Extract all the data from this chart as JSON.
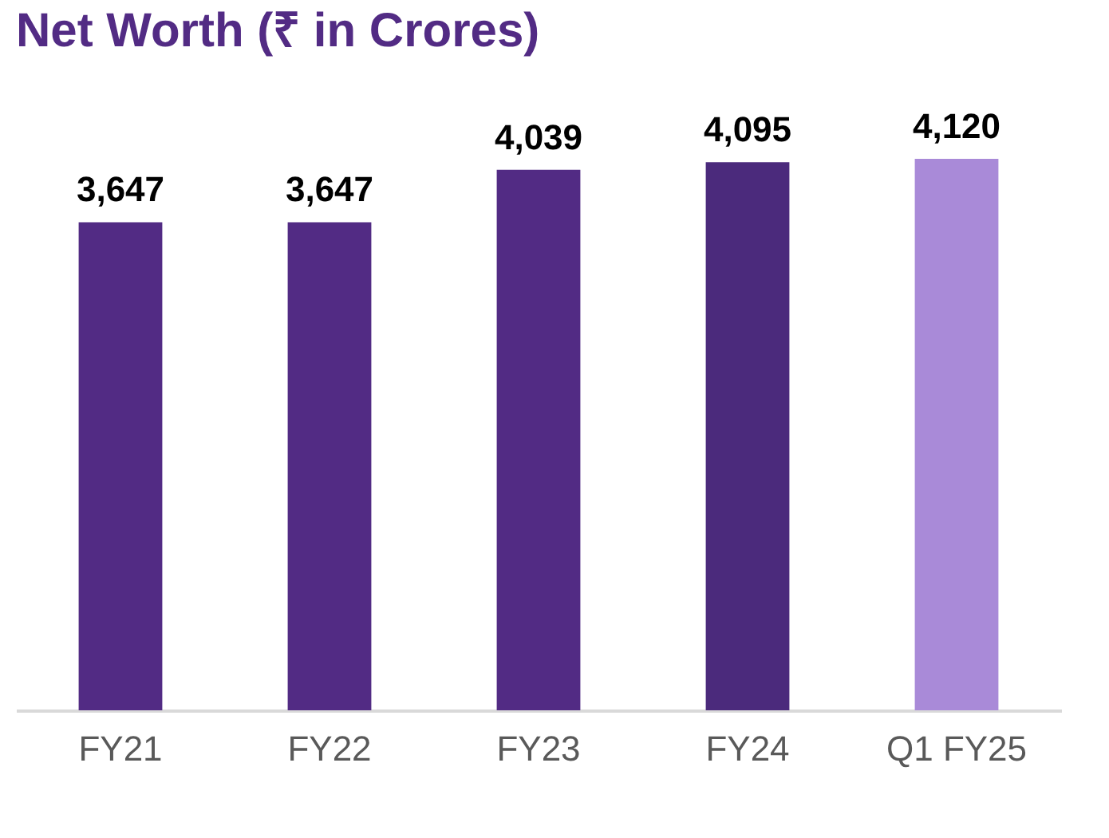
{
  "chart_data": {
    "type": "bar",
    "title": "Net Worth (₹ in Crores)",
    "categories": [
      "FY21",
      "FY22",
      "FY23",
      "FY24",
      "Q1 FY25"
    ],
    "values": [
      3647,
      3647,
      4039,
      4095,
      4120
    ],
    "value_labels": [
      "3,647",
      "3,647",
      "4,039",
      "4,095",
      "4,120"
    ],
    "colors": [
      "#522b84",
      "#522b84",
      "#522b84",
      "#4b2a7c",
      "#a98ad8"
    ],
    "tick_labels": "x"
  }
}
